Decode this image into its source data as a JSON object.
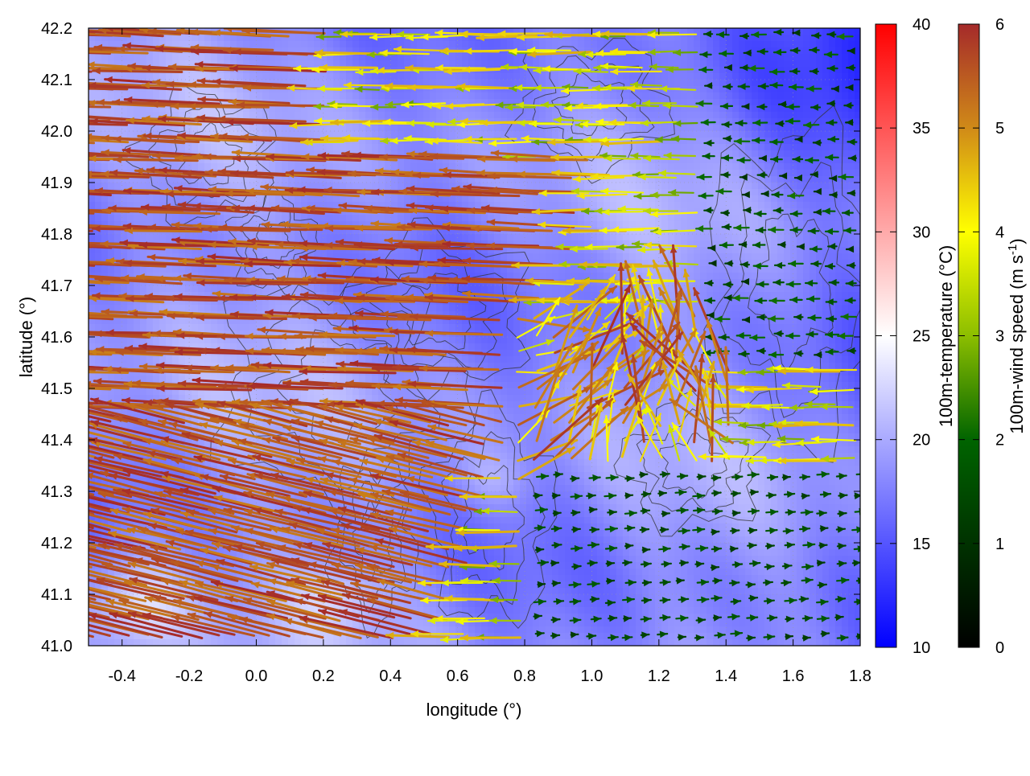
{
  "chart_data": {
    "type": "heatmap",
    "title": "",
    "xlabel": "longitude (°)",
    "ylabel": "latitude (°)",
    "xlim": [
      -0.5,
      1.8
    ],
    "ylim": [
      41.0,
      42.2
    ],
    "x_ticks": [
      "-0.4",
      "-0.2",
      "0.0",
      "0.2",
      "0.4",
      "0.6",
      "0.8",
      "1.0",
      "1.2",
      "1.4",
      "1.6",
      "1.8"
    ],
    "y_ticks": [
      "41.0",
      "41.1",
      "41.2",
      "41.3",
      "41.4",
      "41.5",
      "41.6",
      "41.7",
      "41.8",
      "41.9",
      "42.0",
      "42.1",
      "42.2"
    ],
    "grid": true,
    "background_field": {
      "name": "100m-temperature",
      "unit": "°C",
      "range": [
        10,
        40
      ],
      "colormap": [
        "#0000ff",
        "#ffffff",
        "#ff0000"
      ],
      "dominant_range": [
        14,
        22
      ]
    },
    "vector_field": {
      "name": "100m-wind speed",
      "unit": "m s-1",
      "range": [
        0,
        6
      ],
      "colormap": [
        "#000000",
        "#006400",
        "#ffff00",
        "#a52a2a"
      ],
      "pattern": "strong westward flow (>5 m/s) over west and central areas; weak eastward flow (<2 m/s) in south-east; converging flow near lon 0.8-1.4, lat 41.3-41.6"
    },
    "contours": {
      "type": "terrain",
      "color": "#333333"
    },
    "colorbars": [
      {
        "label": "100m-temperature (°C)",
        "ticks": [
          "10",
          "15",
          "20",
          "25",
          "30",
          "35",
          "40"
        ],
        "colors": [
          "#0000ff",
          "#ffffff",
          "#ff0000"
        ]
      },
      {
        "label_main": "100m-wind speed (m s",
        "label_sup": "-1",
        "label_end": ")",
        "ticks": [
          "0",
          "1",
          "2",
          "3",
          "4",
          "5",
          "6"
        ],
        "colors": [
          "#000000",
          "#006400",
          "#ffff00",
          "#a52a2a"
        ]
      }
    ]
  }
}
